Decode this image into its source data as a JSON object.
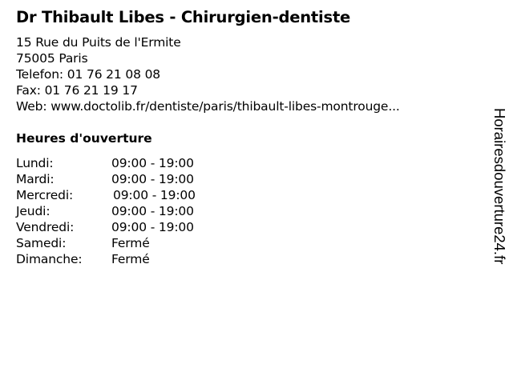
{
  "title": "Dr Thibault Libes - Chirurgien-dentiste",
  "info": {
    "street": "15 Rue du Puits de l'Ermite",
    "city": "75005 Paris",
    "phone": "Telefon: 01 76 21 08 08",
    "fax": "Fax: 01 76 21 19 17",
    "web": "Web: www.doctolib.fr/dentiste/paris/thibault-libes-montrouge..."
  },
  "hours_heading": "Heures d'ouverture",
  "hours": [
    {
      "day": "Lundi:",
      "time": "09:00 - 19:00"
    },
    {
      "day": "Mardi:",
      "time": "09:00 - 19:00"
    },
    {
      "day": "Mercredi:",
      "time": "09:00 - 19:00"
    },
    {
      "day": "Jeudi:",
      "time": "09:00 - 19:00"
    },
    {
      "day": "Vendredi:",
      "time": "09:00 - 19:00"
    },
    {
      "day": "Samedi:",
      "time": "Fermé"
    },
    {
      "day": "Dimanche:",
      "time": "Fermé"
    }
  ],
  "watermark": "Horairesdouverture24.fr"
}
